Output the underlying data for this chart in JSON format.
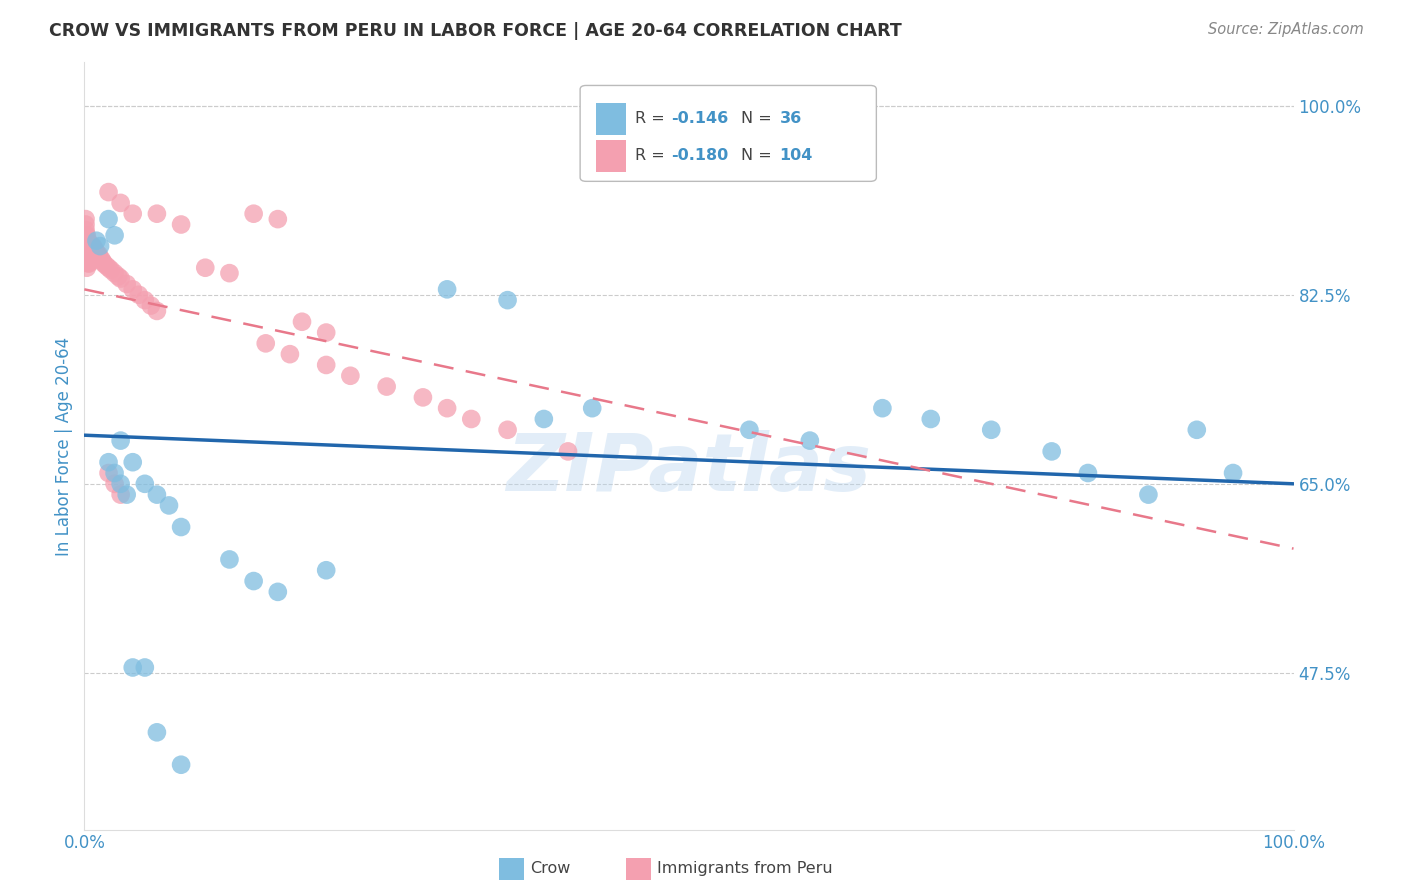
{
  "title": "CROW VS IMMIGRANTS FROM PERU IN LABOR FORCE | AGE 20-64 CORRELATION CHART",
  "source": "Source: ZipAtlas.com",
  "ylabel": "In Labor Force | Age 20-64",
  "watermark": "ZIPatlas",
  "xlim": [
    0.0,
    1.0
  ],
  "ylim": [
    0.33,
    1.04
  ],
  "yticks": [
    0.475,
    0.65,
    0.825,
    1.0
  ],
  "ytick_labels": [
    "47.5%",
    "65.0%",
    "82.5%",
    "100.0%"
  ],
  "xticks": [
    0.0,
    0.1,
    0.2,
    0.3,
    0.4,
    0.5,
    0.6,
    0.7,
    0.8,
    0.9,
    1.0
  ],
  "xtick_labels": [
    "0.0%",
    "",
    "",
    "",
    "",
    "",
    "",
    "",
    "",
    "",
    "100.0%"
  ],
  "blue_color": "#7fbde0",
  "pink_color": "#f4a0b0",
  "blue_line_color": "#2166ac",
  "pink_line_color": "#e8788a",
  "axis_color": "#4292c6",
  "background_color": "#ffffff",
  "grid_color": "#cccccc",
  "crow_x": [
    0.02,
    0.025,
    0.01,
    0.013,
    0.3,
    0.35,
    0.42,
    0.38,
    0.55,
    0.6,
    0.66,
    0.7,
    0.75,
    0.8,
    0.83,
    0.88,
    0.92,
    0.95,
    0.03,
    0.04,
    0.05,
    0.06,
    0.07,
    0.08,
    0.12,
    0.14,
    0.16,
    0.2,
    0.02,
    0.025,
    0.03,
    0.035,
    0.04,
    0.05,
    0.06,
    0.08
  ],
  "crow_y": [
    0.895,
    0.88,
    0.875,
    0.87,
    0.83,
    0.82,
    0.72,
    0.71,
    0.7,
    0.69,
    0.72,
    0.71,
    0.7,
    0.68,
    0.66,
    0.64,
    0.7,
    0.66,
    0.69,
    0.67,
    0.65,
    0.64,
    0.63,
    0.61,
    0.58,
    0.56,
    0.55,
    0.57,
    0.67,
    0.66,
    0.65,
    0.64,
    0.48,
    0.48,
    0.42,
    0.39
  ],
  "peru_x": [
    0.001,
    0.001,
    0.001,
    0.001,
    0.001,
    0.001,
    0.001,
    0.001,
    0.001,
    0.001,
    0.002,
    0.002,
    0.002,
    0.002,
    0.002,
    0.002,
    0.002,
    0.002,
    0.002,
    0.002,
    0.003,
    0.003,
    0.003,
    0.003,
    0.003,
    0.003,
    0.003,
    0.003,
    0.003,
    0.003,
    0.004,
    0.004,
    0.004,
    0.004,
    0.004,
    0.004,
    0.004,
    0.004,
    0.004,
    0.004,
    0.005,
    0.005,
    0.005,
    0.005,
    0.005,
    0.005,
    0.005,
    0.005,
    0.006,
    0.006,
    0.006,
    0.006,
    0.007,
    0.007,
    0.007,
    0.008,
    0.008,
    0.008,
    0.009,
    0.009,
    0.01,
    0.01,
    0.01,
    0.012,
    0.012,
    0.014,
    0.015,
    0.016,
    0.018,
    0.02,
    0.022,
    0.025,
    0.028,
    0.03,
    0.035,
    0.04,
    0.045,
    0.05,
    0.055,
    0.06,
    0.02,
    0.03,
    0.04,
    0.06,
    0.08,
    0.1,
    0.12,
    0.14,
    0.16,
    0.18,
    0.2,
    0.02,
    0.025,
    0.03,
    0.15,
    0.17,
    0.2,
    0.22,
    0.25,
    0.28,
    0.3,
    0.32,
    0.35,
    0.4
  ],
  "peru_y": [
    0.875,
    0.87,
    0.88,
    0.885,
    0.89,
    0.895,
    0.87,
    0.865,
    0.86,
    0.855,
    0.875,
    0.87,
    0.875,
    0.88,
    0.87,
    0.865,
    0.86,
    0.855,
    0.85,
    0.875,
    0.875,
    0.87,
    0.868,
    0.866,
    0.864,
    0.862,
    0.86,
    0.858,
    0.856,
    0.854,
    0.872,
    0.87,
    0.868,
    0.866,
    0.864,
    0.862,
    0.86,
    0.858,
    0.856,
    0.854,
    0.872,
    0.87,
    0.868,
    0.866,
    0.864,
    0.862,
    0.86,
    0.858,
    0.87,
    0.868,
    0.866,
    0.864,
    0.87,
    0.868,
    0.866,
    0.868,
    0.866,
    0.864,
    0.866,
    0.864,
    0.864,
    0.862,
    0.86,
    0.862,
    0.86,
    0.858,
    0.856,
    0.854,
    0.852,
    0.85,
    0.848,
    0.845,
    0.842,
    0.84,
    0.835,
    0.83,
    0.825,
    0.82,
    0.815,
    0.81,
    0.92,
    0.91,
    0.9,
    0.9,
    0.89,
    0.85,
    0.845,
    0.9,
    0.895,
    0.8,
    0.79,
    0.66,
    0.65,
    0.64,
    0.78,
    0.77,
    0.76,
    0.75,
    0.74,
    0.73,
    0.72,
    0.71,
    0.7,
    0.68
  ],
  "blue_line_x0": 0.0,
  "blue_line_y0": 0.695,
  "blue_line_x1": 1.0,
  "blue_line_y1": 0.65,
  "pink_line_x0": 0.0,
  "pink_line_y0": 0.83,
  "pink_line_x1": 1.0,
  "pink_line_y1": 0.59
}
